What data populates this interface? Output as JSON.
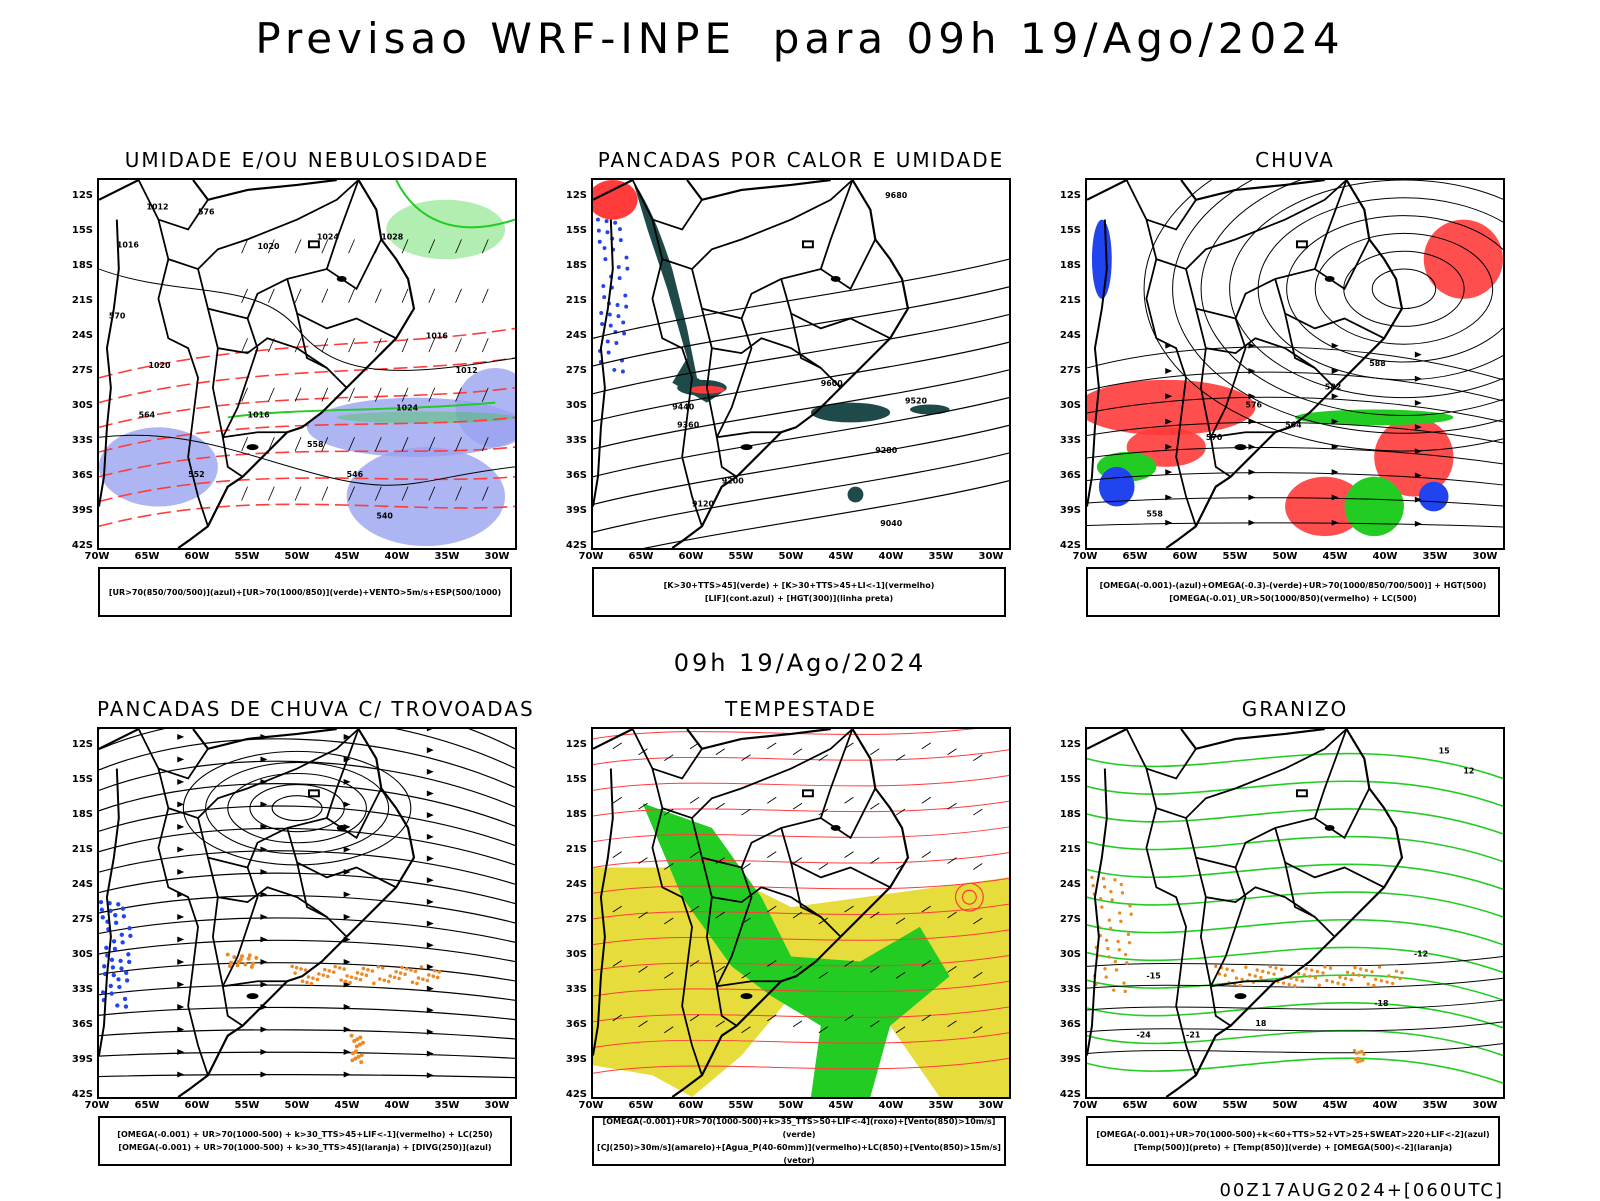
{
  "header": {
    "title": "Previsao WRF-INPE  para 09h 19/Ago/2024",
    "subtitle": "09h 19/Ago/2024",
    "footer": "00Z17AUG2024+[060UTC]"
  },
  "axes": {
    "lat_labels": [
      "12S",
      "15S",
      "18S",
      "21S",
      "24S",
      "27S",
      "30S",
      "33S",
      "36S",
      "39S",
      "42S"
    ],
    "lon_labels": [
      "70W",
      "65W",
      "60W",
      "55W",
      "50W",
      "45W",
      "40W",
      "35W",
      "30W"
    ]
  },
  "panels": [
    {
      "id": "umidade",
      "title": "UMIDADE E/OU NEBULOSIDADE",
      "legend": [
        "[UR>70(850/700/500)](azul)+[UR>70(1000/850)](verde)+VENTO>5m/s+ESP(500/1000)"
      ]
    },
    {
      "id": "pancadas-calor",
      "title": "PANCADAS POR CALOR E UMIDADE",
      "legend": [
        "[K>30+TTS>45](verde)  +  [K>30+TTS>45+LI<-1](vermelho)",
        "[LIF](cont.azul)  +  [HGT(300)](linha preta)"
      ]
    },
    {
      "id": "chuva",
      "title": "CHUVA",
      "legend": [
        "[OMEGA(-0.001)-(azul)+OMEGA(-0.3)-(verde)+UR>70(1000/850/700/500)]  +  HGT(500)",
        "[OMEGA(-0.01)_UR>50(1000/850)(vermelho)  +  LC(500)"
      ]
    },
    {
      "id": "trovoadas",
      "title": "PANCADAS DE CHUVA C/ TROVOADAS",
      "legend": [
        "[OMEGA(-0.001)  +  UR>70(1000-500)  +  k>30_TTS>45+LIF<-1](vermelho)  +  LC(250)",
        "[OMEGA(-0.001)  +  UR>70(1000-500)  +  k>30_TTS>45](laranja)  +  [DIVG(250)](azul)"
      ]
    },
    {
      "id": "tempestade",
      "title": "TEMPESTADE",
      "legend": [
        "[OMEGA(-0.001)+UR>70(1000-500)+k>35_TTS>50+LIF<-4](roxo)+[Vento(850)>10m/s](verde)",
        "[CJ(250)>30m/s](amarelo)+[Agua_P(40-60mm)](vermelho)+LC(850)+[Vento(850)>15m/s](vetor)"
      ]
    },
    {
      "id": "granizo",
      "title": "GRANIZO",
      "legend": [
        "[OMEGA(-0.001)+UR>70(1000-500)+k<60+TTS>52+VT>25+SWEAT>220+LIF<-2](azul)",
        "[Temp(500)](preto)  +  [Temp(850)](verde)  +  [OMEGA(500)<-2](laranja)"
      ]
    }
  ],
  "contour_labels": {
    "umidade": [
      "1012",
      "1016",
      "1020",
      "1024",
      "1028",
      "1016",
      "1020",
      "1024",
      "1016",
      "1012",
      "576",
      "570",
      "564",
      "558",
      "552",
      "546",
      "540"
    ],
    "pancadas": [
      "9680",
      "9600",
      "9520",
      "9440",
      "9360",
      "9280",
      "9200",
      "9120",
      "9040"
    ],
    "chuva": [
      "588",
      "582",
      "576",
      "570",
      "564",
      "558"
    ],
    "granizo": [
      "-12",
      "-15",
      "-18",
      "-21",
      "-24",
      "15",
      "18",
      "12"
    ]
  },
  "colors": {
    "contour_red": "#ff3b3b",
    "humidity_blue": "#9aa2f0",
    "green": "#22cc22",
    "dark_teal": "#1f4a4a",
    "yellow": "#e6dc3c",
    "orange": "#ee8822",
    "blue": "#2244ee"
  }
}
